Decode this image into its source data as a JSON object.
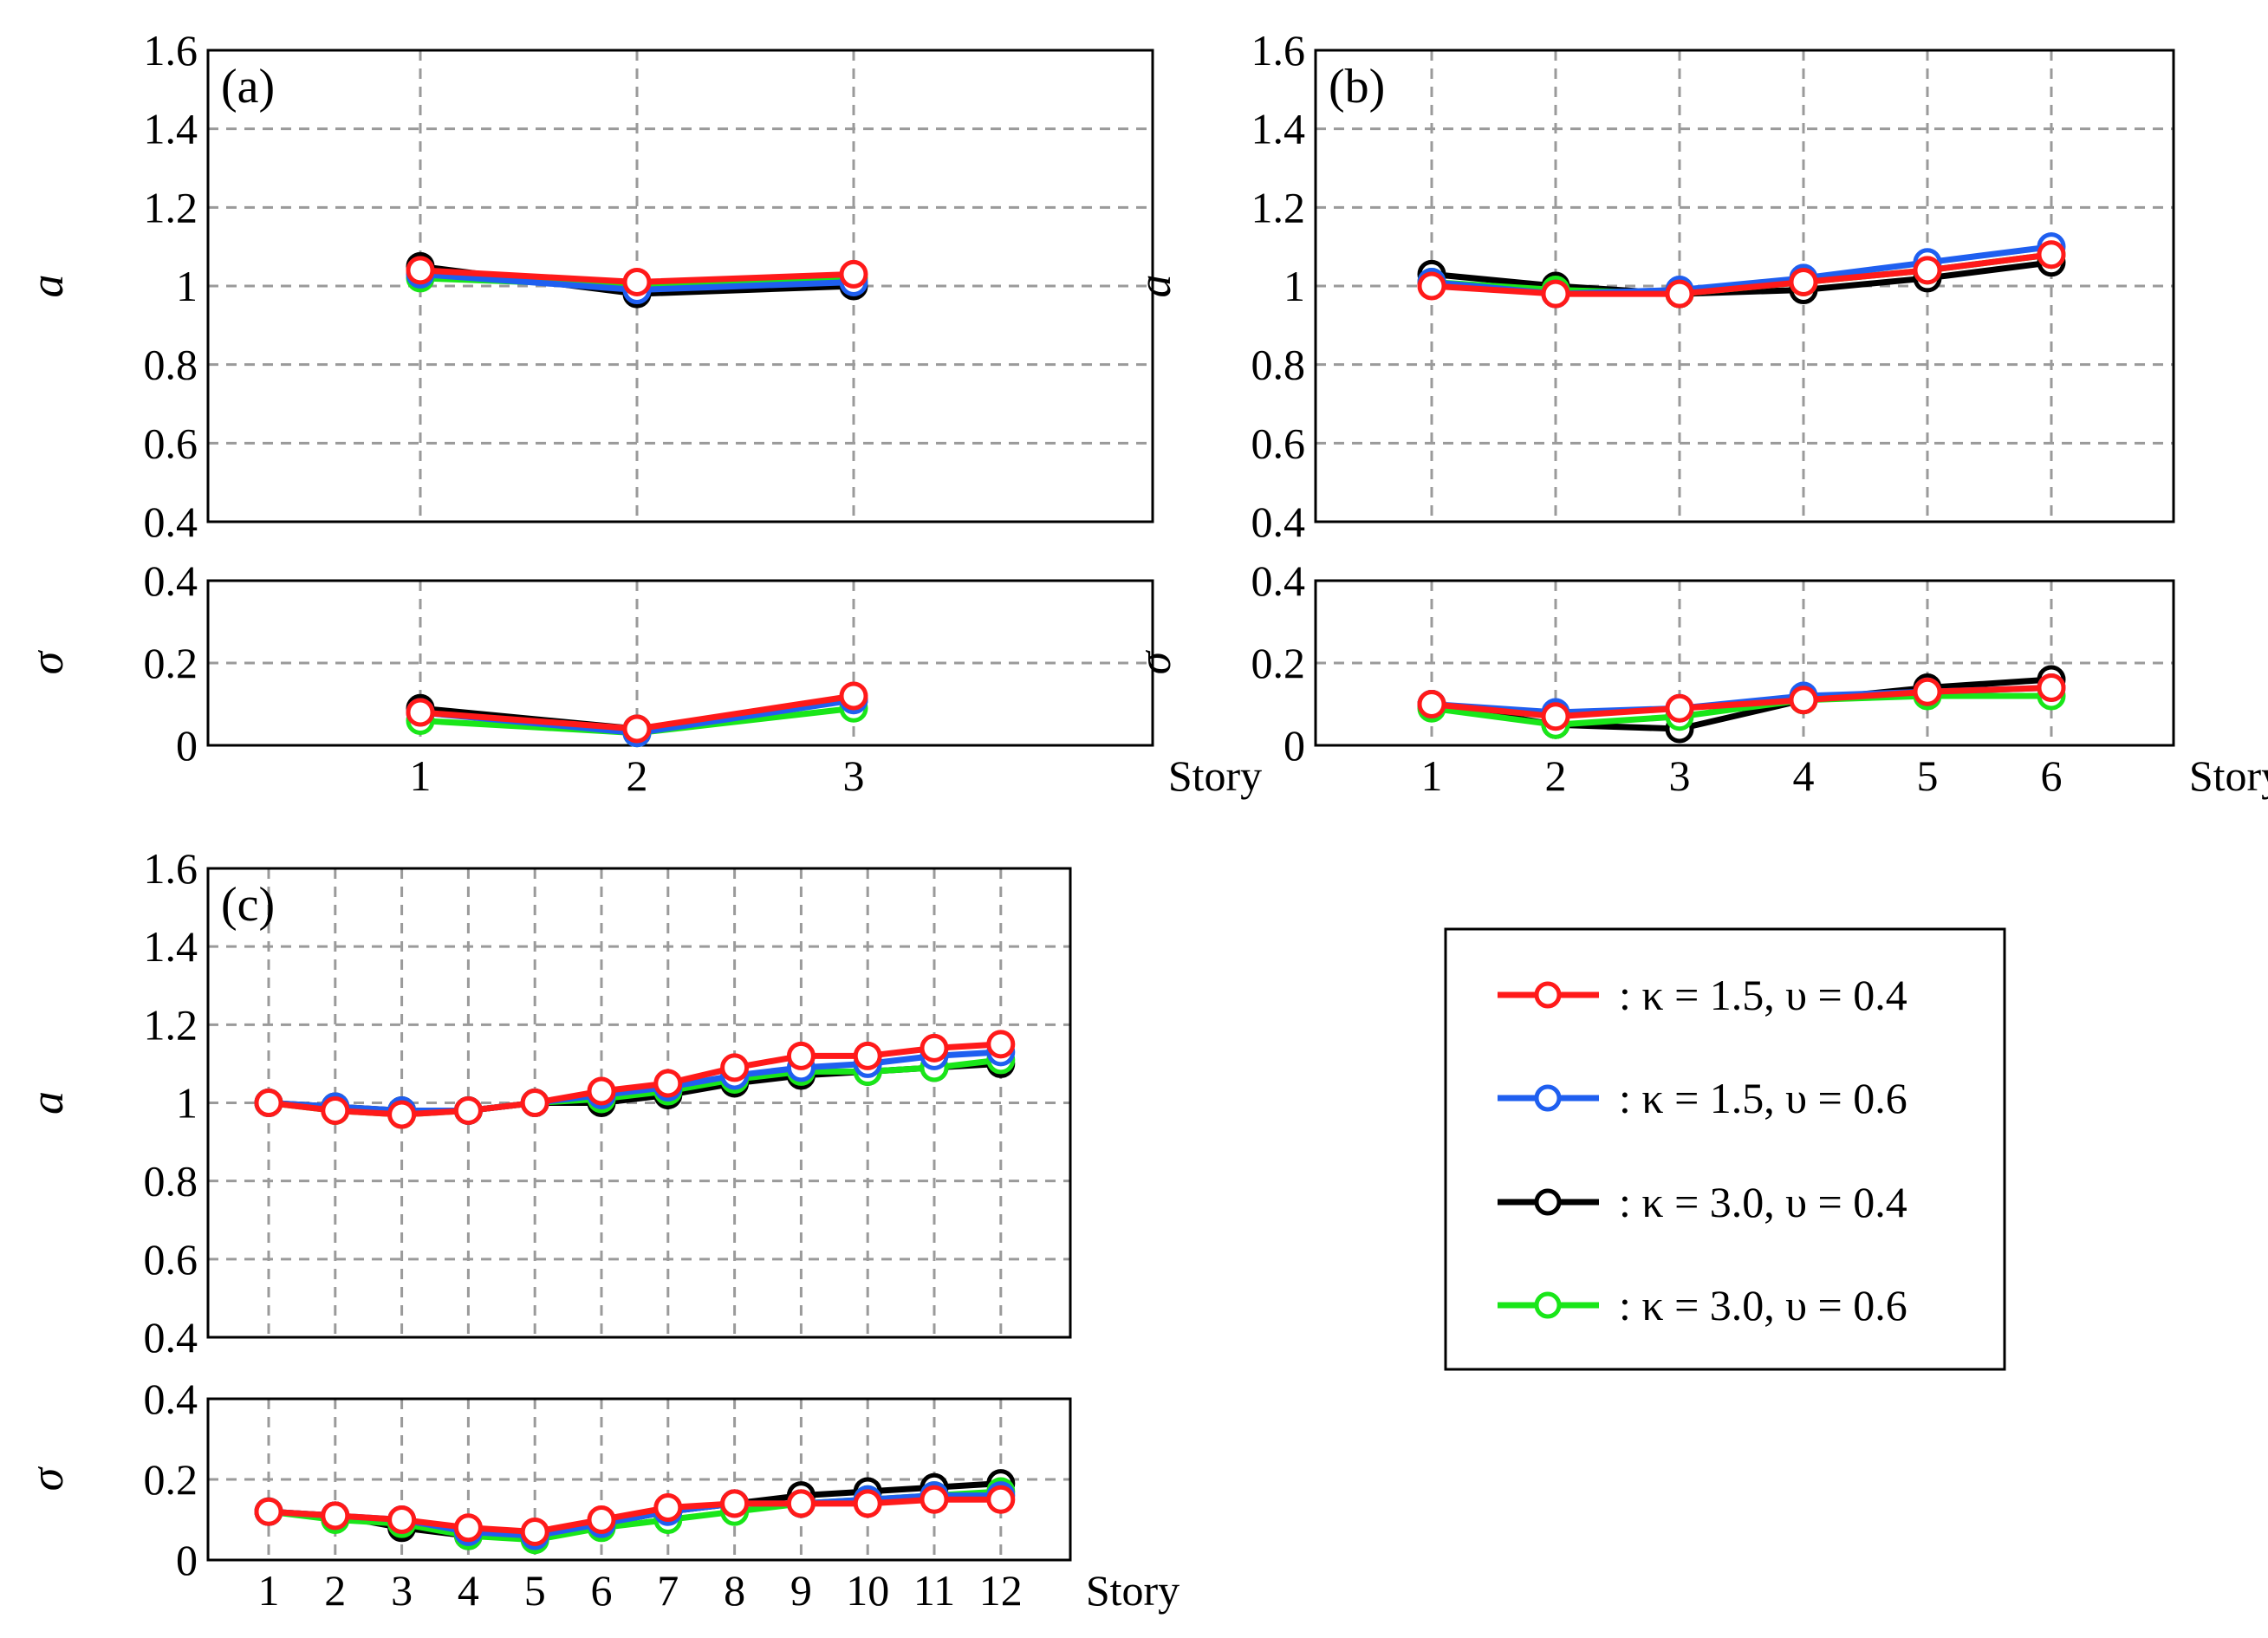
{
  "legend": {
    "entries": [
      {
        "key": "s1",
        "text": ": κ = 1.5, υ = 0.4",
        "color": "#ff1a1a"
      },
      {
        "key": "s2",
        "text": ": κ = 1.5, υ = 0.6",
        "color": "#1f5ff0"
      },
      {
        "key": "s3",
        "text": ": κ = 3.0, υ = 0.4",
        "color": "#000000"
      },
      {
        "key": "s4",
        "text": ": κ = 3.0, υ = 0.6",
        "color": "#19e619"
      }
    ]
  },
  "chart_data": [
    {
      "id": "a",
      "type": "line",
      "panel_label": "(a)",
      "xlabel": "Story",
      "categories": [
        "1",
        "2",
        "3"
      ],
      "mean_plot": {
        "ylabel": "a",
        "ylim": [
          0.4,
          1.6
        ],
        "yticks": [
          "0.4",
          "0.6",
          "0.8",
          "1",
          "1.2",
          "1.4",
          "1.6"
        ],
        "series": [
          {
            "name": "κ = 3.0, υ = 0.4",
            "values": [
              1.05,
              0.98,
              1.0
            ]
          },
          {
            "name": "κ = 3.0, υ = 0.6",
            "values": [
              1.02,
              1.0,
              1.02
            ]
          },
          {
            "name": "κ = 1.5, υ = 0.6",
            "values": [
              1.03,
              0.99,
              1.01
            ]
          },
          {
            "name": "κ = 1.5, υ = 0.4",
            "values": [
              1.04,
              1.01,
              1.03
            ]
          }
        ]
      },
      "std_plot": {
        "ylabel": "σ",
        "ylim": [
          0,
          0.4
        ],
        "yticks": [
          "0",
          "0.2",
          "0.4"
        ],
        "series": [
          {
            "name": "κ = 3.0, υ = 0.4",
            "values": [
              0.09,
              0.04,
              0.11
            ]
          },
          {
            "name": "κ = 3.0, υ = 0.6",
            "values": [
              0.06,
              0.03,
              0.09
            ]
          },
          {
            "name": "κ = 1.5, υ = 0.6",
            "values": [
              0.08,
              0.03,
              0.11
            ]
          },
          {
            "name": "κ = 1.5, υ = 0.4",
            "values": [
              0.08,
              0.04,
              0.12
            ]
          }
        ]
      }
    },
    {
      "id": "b",
      "type": "line",
      "panel_label": "(b)",
      "xlabel": "Story",
      "categories": [
        "1",
        "2",
        "3",
        "4",
        "5",
        "6"
      ],
      "mean_plot": {
        "ylabel": "a",
        "ylim": [
          0.4,
          1.6
        ],
        "yticks": [
          "0.4",
          "0.6",
          "0.8",
          "1",
          "1.2",
          "1.4",
          "1.6"
        ],
        "series": [
          {
            "name": "κ = 3.0, υ = 0.4",
            "values": [
              1.03,
              1.0,
              0.98,
              0.99,
              1.02,
              1.06
            ]
          },
          {
            "name": "κ = 3.0, υ = 0.6",
            "values": [
              1.01,
              0.99,
              0.98,
              1.01,
              1.04,
              1.08
            ]
          },
          {
            "name": "κ = 1.5, υ = 0.6",
            "values": [
              1.01,
              0.98,
              0.99,
              1.02,
              1.06,
              1.1
            ]
          },
          {
            "name": "κ = 1.5, υ = 0.4",
            "values": [
              1.0,
              0.98,
              0.98,
              1.01,
              1.04,
              1.08
            ]
          }
        ]
      },
      "std_plot": {
        "ylabel": "σ",
        "ylim": [
          0,
          0.4
        ],
        "yticks": [
          "0",
          "0.2",
          "0.4"
        ],
        "series": [
          {
            "name": "κ = 3.0, υ = 0.4",
            "values": [
              0.1,
              0.05,
              0.04,
              0.11,
              0.14,
              0.16
            ]
          },
          {
            "name": "κ = 3.0, υ = 0.6",
            "values": [
              0.09,
              0.05,
              0.07,
              0.11,
              0.12,
              0.12
            ]
          },
          {
            "name": "κ = 1.5, υ = 0.6",
            "values": [
              0.1,
              0.08,
              0.09,
              0.12,
              0.13,
              0.14
            ]
          },
          {
            "name": "κ = 1.5, υ = 0.4",
            "values": [
              0.1,
              0.07,
              0.09,
              0.11,
              0.13,
              0.14
            ]
          }
        ]
      }
    },
    {
      "id": "c",
      "type": "line",
      "panel_label": "(c)",
      "xlabel": "Story",
      "categories": [
        "1",
        "2",
        "3",
        "4",
        "5",
        "6",
        "7",
        "8",
        "9",
        "10",
        "11",
        "12"
      ],
      "mean_plot": {
        "ylabel": "a",
        "ylim": [
          0.4,
          1.6
        ],
        "yticks": [
          "0.4",
          "0.6",
          "0.8",
          "1",
          "1.2",
          "1.4",
          "1.6"
        ],
        "series": [
          {
            "name": "κ = 3.0, υ = 0.4",
            "values": [
              1.0,
              0.99,
              0.98,
              0.98,
              1.0,
              1.0,
              1.02,
              1.05,
              1.07,
              1.08,
              1.09,
              1.1
            ]
          },
          {
            "name": "κ = 3.0, υ = 0.6",
            "values": [
              1.0,
              0.98,
              0.97,
              0.98,
              1.0,
              1.01,
              1.03,
              1.06,
              1.08,
              1.08,
              1.09,
              1.11
            ]
          },
          {
            "name": "κ = 1.5, υ = 0.6",
            "values": [
              1.0,
              0.99,
              0.98,
              0.98,
              1.0,
              1.02,
              1.04,
              1.07,
              1.09,
              1.1,
              1.12,
              1.13
            ]
          },
          {
            "name": "κ = 1.5, υ = 0.4",
            "values": [
              1.0,
              0.98,
              0.97,
              0.98,
              1.0,
              1.03,
              1.05,
              1.09,
              1.12,
              1.12,
              1.14,
              1.15
            ]
          }
        ]
      },
      "std_plot": {
        "ylabel": "σ",
        "ylim": [
          0,
          0.4
        ],
        "yticks": [
          "0",
          "0.2",
          "0.4"
        ],
        "series": [
          {
            "name": "κ = 3.0, υ = 0.4",
            "values": [
              0.12,
              0.11,
              0.08,
              0.06,
              0.06,
              0.09,
              0.12,
              0.14,
              0.16,
              0.17,
              0.18,
              0.19
            ]
          },
          {
            "name": "κ = 3.0, υ = 0.6",
            "values": [
              0.12,
              0.1,
              0.09,
              0.06,
              0.05,
              0.08,
              0.1,
              0.12,
              0.14,
              0.15,
              0.16,
              0.17
            ]
          },
          {
            "name": "κ = 1.5, υ = 0.6",
            "values": [
              0.12,
              0.11,
              0.1,
              0.07,
              0.06,
              0.09,
              0.12,
              0.14,
              0.14,
              0.15,
              0.16,
              0.16
            ]
          },
          {
            "name": "κ = 1.5, υ = 0.4",
            "values": [
              0.12,
              0.11,
              0.1,
              0.08,
              0.07,
              0.1,
              0.13,
              0.14,
              0.14,
              0.14,
              0.15,
              0.15
            ]
          }
        ]
      }
    }
  ]
}
